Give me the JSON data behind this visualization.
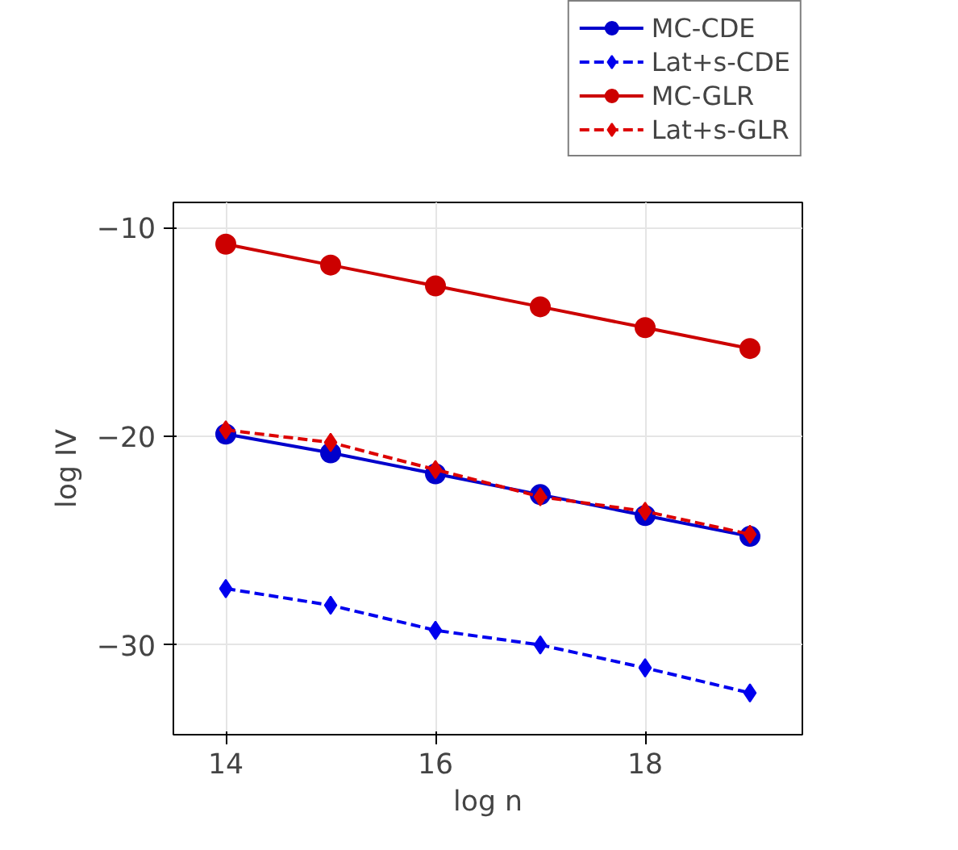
{
  "chart_data": {
    "type": "line",
    "xlabel": "log n",
    "ylabel": "log IV",
    "x": [
      14,
      15,
      16,
      17,
      18,
      19
    ],
    "xlim": [
      13.5,
      19.5
    ],
    "ylim": [
      -34.3,
      -8.8
    ],
    "xticks": [
      14,
      16,
      18
    ],
    "yticks": [
      -30,
      -20,
      -10
    ],
    "grid": true,
    "legend": "top right",
    "series": [
      {
        "name": "MC-CDE",
        "color": "#0000cc",
        "marker": "circle",
        "line_style": "solid",
        "values": [
          -19.9,
          -20.8,
          -21.8,
          -22.8,
          -23.8,
          -24.8
        ]
      },
      {
        "name": "Lat+s-CDE",
        "color": "#0000ee",
        "marker": "diamond",
        "line_style": "dashed",
        "values": [
          -27.3,
          -28.1,
          -29.3,
          -30.0,
          -31.1,
          -32.3
        ]
      },
      {
        "name": "MC-GLR",
        "color": "#cc0000",
        "marker": "circle",
        "line_style": "solid",
        "values": [
          -10.8,
          -11.8,
          -12.8,
          -13.8,
          -14.8,
          -15.8
        ]
      },
      {
        "name": "Lat+s-GLR",
        "color": "#dd0000",
        "marker": "diamond",
        "line_style": "dashed",
        "values": [
          -19.7,
          -20.3,
          -21.6,
          -22.9,
          -23.6,
          -24.7
        ]
      }
    ]
  }
}
